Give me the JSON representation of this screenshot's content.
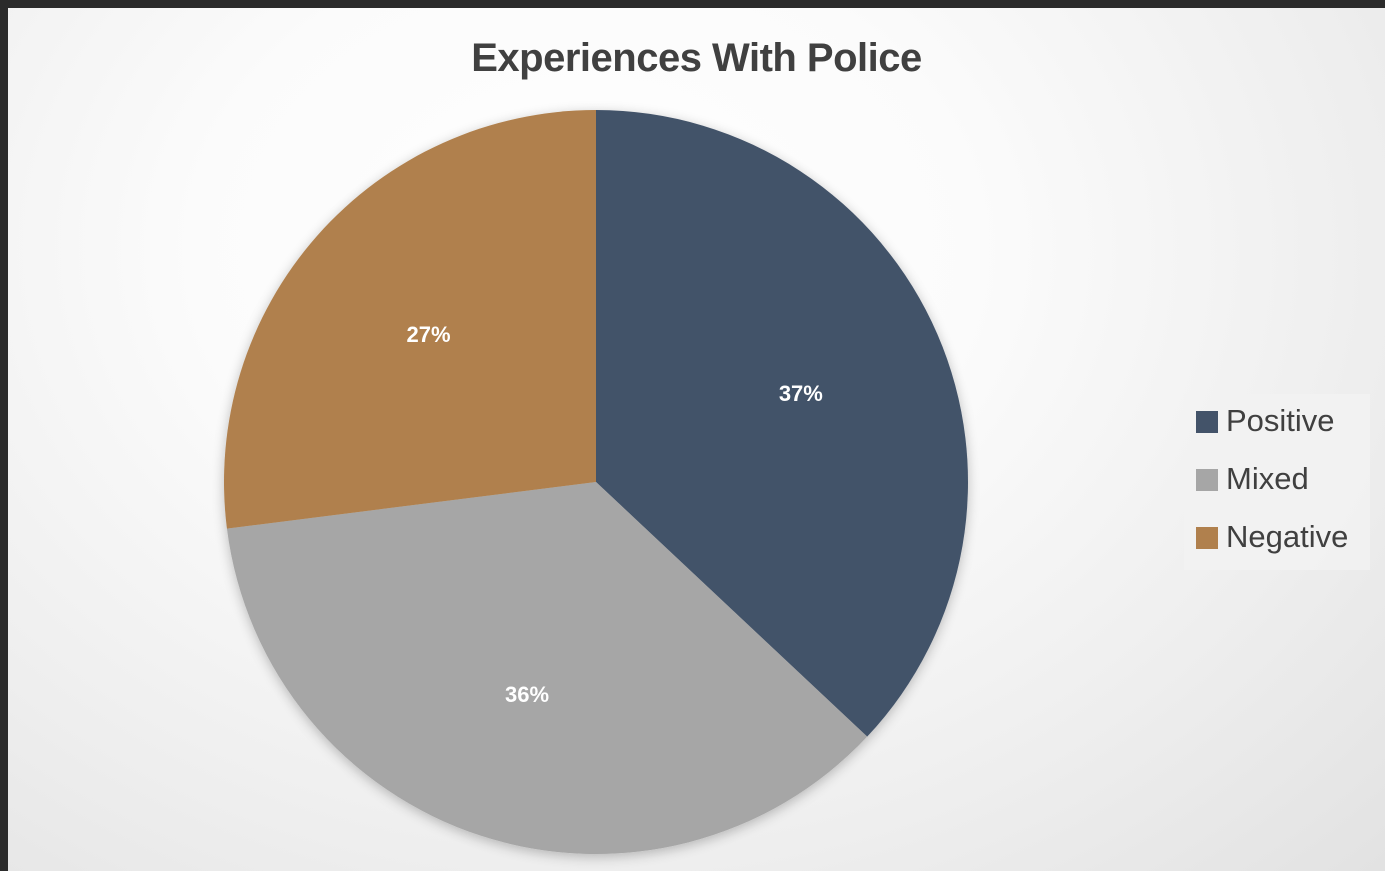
{
  "chart_data": {
    "type": "pie",
    "title": "Experiences With Police",
    "categories": [
      "Positive",
      "Mixed",
      "Negative"
    ],
    "values": [
      37,
      36,
      27
    ],
    "labels": [
      "37%",
      "36%",
      "27%"
    ],
    "colors": [
      "#435369",
      "#a6a6a6",
      "#b0804d"
    ],
    "start_angle": "12 o'clock",
    "direction": "clockwise",
    "legend_position": "right"
  }
}
